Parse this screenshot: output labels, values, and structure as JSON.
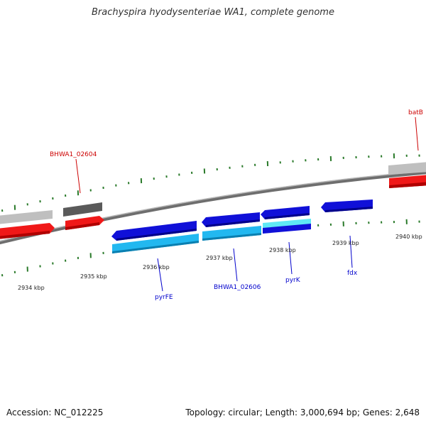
{
  "title": "Brachyspira hyodysenteriae WA1, complete genome",
  "footer": {
    "accession": "Accession: NC_012225",
    "summary": "Topology: circular; Length: 3,000,694 bp; Genes: 2,648"
  },
  "colors": {
    "backbone": "#7f7f7f",
    "tick": "#2a7a2a",
    "forward_gene": "#ff1a1a",
    "forward_gene_grey": "#bcbcbc",
    "forward_gene_darkgrey": "#555555",
    "reverse_gene": "#1212e0",
    "reverse_gene_cyan": "#22b8f0",
    "label_red": "#cc0000",
    "label_blue": "#0000cc"
  },
  "kbp_labels": [
    "2934 kbp",
    "2935 kbp",
    "2936 kbp",
    "2937 kbp",
    "2938 kbp",
    "2939 kbp",
    "2940 kbp"
  ],
  "gene_labels": [
    "BHWA1_02604",
    "batB",
    "pyrFE",
    "BHWA1_02606",
    "pyrK",
    "fdx"
  ]
}
